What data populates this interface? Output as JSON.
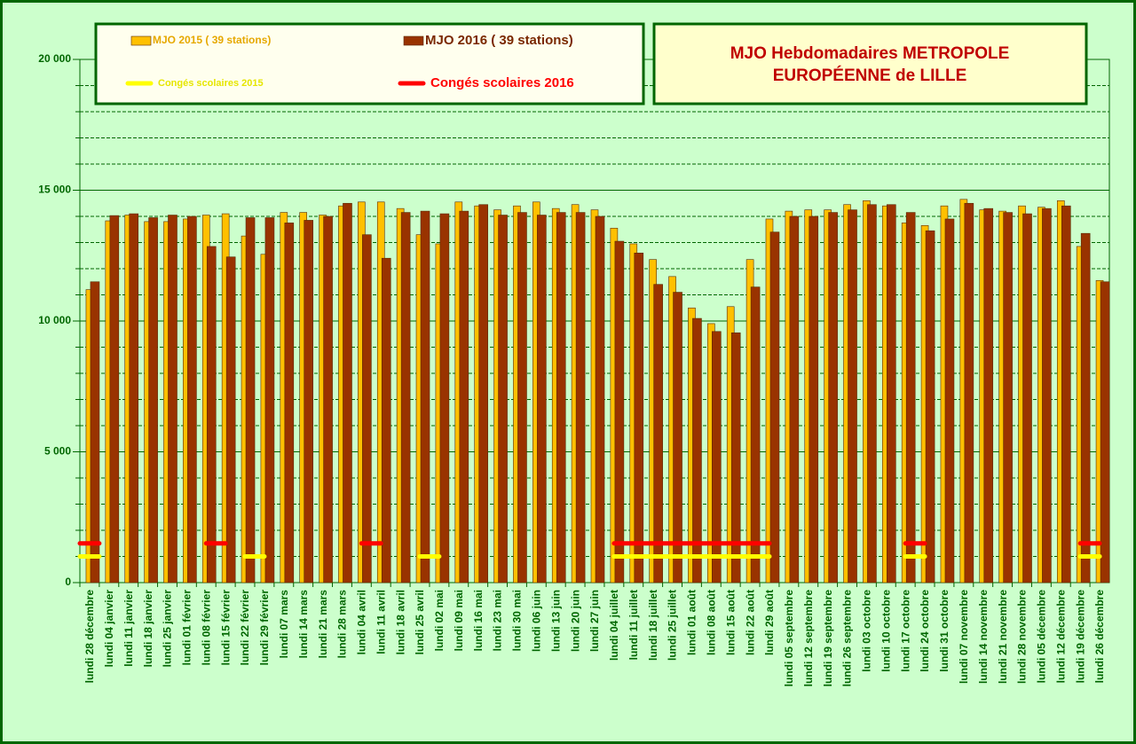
{
  "chart_data": {
    "type": "bar",
    "title": [
      "MJO Hebdomadaires  METROPOLE",
      "EUROPÉENNE de LILLE"
    ],
    "categories": [
      "lundi 28 décembre",
      "lundi 04 janvier",
      "lundi 11 janvier",
      "lundi 18 janvier",
      "lundi 25 janvier",
      "lundi 01 février",
      "lundi 08 février",
      "lundi 15 février",
      "lundi 22 février",
      "lundi 29 février",
      "lundi 07 mars",
      "lundi 14 mars",
      "lundi 21 mars",
      "lundi 28 mars",
      "lundi 04 avril",
      "lundi 11 avril",
      "lundi 18 avril",
      "lundi 25 avril",
      "lundi 02 mai",
      "lundi 09 mai",
      "lundi 16 mai",
      "lundi 23 mai",
      "lundi 30 mai",
      "lundi 06 juin",
      "lundi 13 juin",
      "lundi 20 juin",
      "lundi 27 juin",
      "lundi 04 juillet",
      "lundi 11 juillet",
      "lundi 18 juillet",
      "lundi 25 juillet",
      "lundi 01 août",
      "lundi 08 août",
      "lundi 15 août",
      "lundi 22 août",
      "lundi 29 août",
      "lundi 05 septembre",
      "lundi 12 septembre",
      "lundi 19 septembre",
      "lundi 26 septembre",
      "lundi 03 octobre",
      "lundi 10 octobre",
      "lundi 17 octobre",
      "lundi 24 octobre",
      "lundi 31 octobre",
      "lundi 07 novembre",
      "lundi 14 novembre",
      "lundi 21 novembre",
      "lundi 28 novembre",
      "lundi 05 décembre",
      "lundi 12 décembre",
      "lundi 19 décembre",
      "lundi 26 décembre"
    ],
    "series": [
      {
        "name": "MJO  2015 ( 39 stations)",
        "type": "bar",
        "color": "#ffc000",
        "values": [
          11200,
          13830,
          14050,
          13800,
          13800,
          13900,
          14050,
          14100,
          13250,
          12550,
          14150,
          14150,
          14050,
          14400,
          14550,
          14550,
          14300,
          13300,
          12950,
          14550,
          14400,
          14250,
          14400,
          14550,
          14300,
          14450,
          14250,
          13550,
          12950,
          12350,
          11700,
          10500,
          9900,
          10550,
          12350,
          13900,
          14200,
          14250,
          14250,
          14450,
          14600,
          14400,
          13750,
          13650,
          14400,
          14650,
          14250,
          14200,
          14400,
          14350,
          14600,
          12850,
          11550
        ]
      },
      {
        "name": "MJO  2016 ( 39 stations)",
        "type": "bar",
        "color": "#993300",
        "values": [
          11500,
          14030,
          14100,
          13950,
          14050,
          14000,
          12850,
          12450,
          13950,
          13950,
          13750,
          13850,
          14000,
          14500,
          13300,
          12400,
          14150,
          14200,
          14100,
          14200,
          14450,
          14050,
          14150,
          14050,
          14150,
          14150,
          14000,
          13050,
          12600,
          11400,
          11100,
          10100,
          9600,
          9550,
          11300,
          13400,
          14000,
          14000,
          14150,
          14250,
          14450,
          14450,
          14150,
          13450,
          13900,
          14500,
          14300,
          14150,
          14100,
          14300,
          14400,
          13350,
          11500
        ]
      },
      {
        "name": "Congés scolaires 2015",
        "type": "line",
        "color": "#ffff00",
        "values": [
          1000,
          null,
          null,
          null,
          null,
          null,
          null,
          null,
          1000,
          1000,
          null,
          null,
          null,
          null,
          null,
          null,
          null,
          1000,
          1000,
          null,
          null,
          null,
          null,
          null,
          null,
          null,
          null,
          1000,
          1000,
          1000,
          1000,
          1000,
          1000,
          1000,
          1000,
          1000,
          null,
          null,
          null,
          null,
          null,
          null,
          1000,
          1000,
          null,
          null,
          null,
          null,
          null,
          null,
          null,
          1000,
          1000
        ]
      },
      {
        "name": "Congés scolaires 2016",
        "type": "line",
        "color": "#ff0000",
        "values": [
          1500,
          null,
          null,
          null,
          null,
          null,
          1500,
          1500,
          null,
          null,
          null,
          null,
          null,
          null,
          1500,
          1500,
          null,
          null,
          null,
          null,
          null,
          null,
          null,
          null,
          null,
          null,
          null,
          1500,
          1500,
          1500,
          1500,
          1500,
          1500,
          1500,
          1500,
          1500,
          null,
          null,
          null,
          null,
          null,
          null,
          1500,
          1500,
          null,
          null,
          null,
          null,
          null,
          null,
          null,
          1500,
          1500
        ]
      }
    ],
    "ylim": [
      0,
      20000
    ],
    "yticks": [
      0,
      {
        "value": 5000,
        "label": "5 000"
      },
      {
        "value": 10000,
        "label": "10 000"
      },
      {
        "value": 15000,
        "label": "15 000"
      },
      {
        "value": 20000,
        "label": "20 000"
      }
    ],
    "minor_yticks": [
      1000,
      2000,
      3000,
      4000,
      6000,
      7000,
      8000,
      9000,
      11000,
      12000,
      13000,
      14000,
      16000,
      17000,
      18000,
      19000
    ],
    "grid": true
  }
}
